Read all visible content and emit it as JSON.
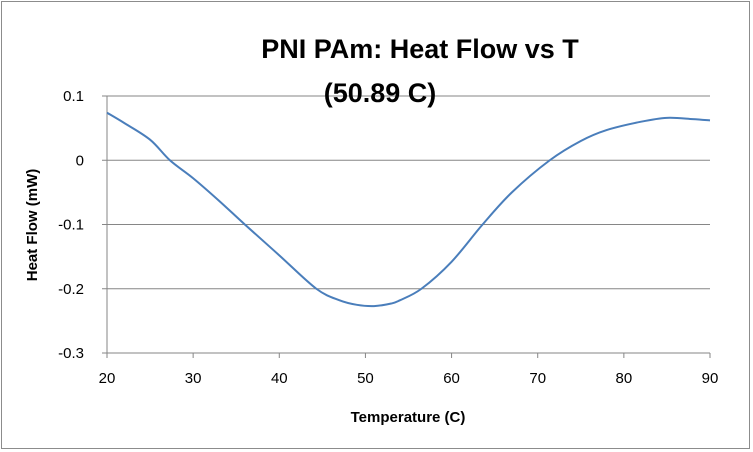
{
  "chart_data": {
    "type": "line",
    "title_lines": [
      "PNI PAm: Heat Flow vs T",
      "(50.89 C)"
    ],
    "xlabel": "Temperature (C)",
    "ylabel": "Heat Flow (mW)",
    "xlim": [
      20,
      90
    ],
    "ylim": [
      -0.3,
      0.1
    ],
    "xticks": [
      20,
      30,
      40,
      50,
      60,
      70,
      80,
      90
    ],
    "yticks": [
      0.1,
      0,
      -0.1,
      -0.2,
      -0.3
    ],
    "ytick_labels": [
      "0.1",
      "0",
      "-0.1",
      "-0.2",
      "-0.3"
    ],
    "grid": "horizontal",
    "legend": "none",
    "series": [
      {
        "name": "Heat Flow",
        "color": "#4a7ebb",
        "x": [
          20,
          22,
          25,
          27.3,
          30,
          33,
          36,
          40,
          44.3,
          47,
          49,
          51,
          53,
          54,
          56.5,
          60,
          63.6,
          67,
          71.4,
          75,
          78,
          82,
          85,
          88,
          90
        ],
        "y": [
          0.074,
          0.058,
          0.032,
          0,
          -0.028,
          -0.063,
          -0.1,
          -0.148,
          -0.2,
          -0.218,
          -0.225,
          -0.227,
          -0.223,
          -0.218,
          -0.2,
          -0.158,
          -0.1,
          -0.05,
          0,
          0.03,
          0.047,
          0.06,
          0.066,
          0.064,
          0.062
        ]
      }
    ]
  }
}
